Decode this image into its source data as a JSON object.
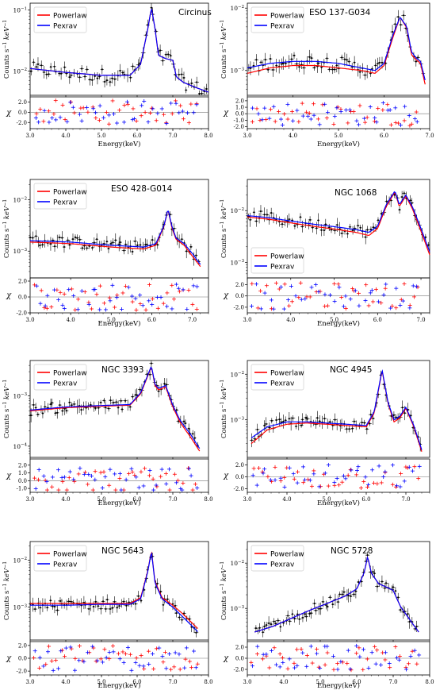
{
  "figure": {
    "legend_entries": [
      {
        "label": "Powerlaw",
        "color": "#ff0000"
      },
      {
        "label": "Pexrav",
        "color": "#0000ff"
      }
    ],
    "residual_label": "χ",
    "spectrum_ylabel": "Counts s^-1 keV^-1"
  },
  "chart_data": [
    {
      "type": "line",
      "title": "Circinus",
      "xlabel": "Energy(keV)",
      "xlim": [
        3.0,
        8.0
      ],
      "xticks": [
        "3.0",
        "4.0",
        "5.0",
        "6.0",
        "7.0",
        "8.0"
      ],
      "yscale": "log",
      "ylim": [
        0.004,
        0.13
      ],
      "yticks": [
        "10^-2",
        "10^-1"
      ],
      "series": [
        {
          "name": "Powerlaw",
          "x": [
            3.0,
            4.0,
            5.0,
            5.8,
            6.1,
            6.3,
            6.4,
            6.5,
            6.6,
            6.8,
            7.0,
            7.1,
            7.3,
            7.6,
            8.0
          ],
          "y": [
            0.011,
            0.0095,
            0.0085,
            0.0085,
            0.013,
            0.05,
            0.11,
            0.05,
            0.018,
            0.016,
            0.015,
            0.008,
            0.0065,
            0.0055,
            0.0045
          ]
        },
        {
          "name": "Pexrav",
          "x": [
            3.0,
            4.0,
            5.0,
            5.8,
            6.1,
            6.3,
            6.4,
            6.5,
            6.6,
            6.8,
            7.0,
            7.1,
            7.3,
            7.6,
            8.0
          ],
          "y": [
            0.011,
            0.0095,
            0.0085,
            0.0085,
            0.013,
            0.05,
            0.11,
            0.05,
            0.018,
            0.016,
            0.015,
            0.008,
            0.0065,
            0.0055,
            0.0045
          ]
        }
      ],
      "residual": {
        "ylim": [
          -3.2,
          3.0
        ],
        "yticks": [
          "2.0",
          "0.0",
          "-2.0"
        ],
        "ytick_values": [
          2.0,
          0.0,
          -2.0
        ]
      }
    },
    {
      "type": "line",
      "title": "ESO 137-G034",
      "xlabel": "Energy(keV)",
      "xlim": [
        3.0,
        7.0
      ],
      "xticks": [
        "3.0",
        "4.0",
        "5.0",
        "6.0",
        "7.0"
      ],
      "yscale": "log",
      "ylim": [
        0.0004,
        0.012
      ],
      "yticks": [
        "10^-3",
        "10^-2"
      ],
      "series": [
        {
          "name": "Powerlaw",
          "x": [
            3.0,
            3.5,
            4.0,
            4.5,
            5.0,
            5.5,
            5.8,
            6.0,
            6.2,
            6.35,
            6.5,
            6.6,
            6.7,
            6.8,
            6.9
          ],
          "y": [
            0.0009,
            0.0011,
            0.0012,
            0.0012,
            0.0011,
            0.001,
            0.0009,
            0.0012,
            0.0035,
            0.0072,
            0.0048,
            0.0018,
            0.0015,
            0.0013,
            0.0006
          ]
        },
        {
          "name": "Pexrav",
          "x": [
            3.0,
            3.5,
            4.0,
            4.5,
            5.0,
            5.5,
            5.8,
            6.0,
            6.2,
            6.35,
            6.5,
            6.6,
            6.7,
            6.8,
            6.9
          ],
          "y": [
            0.0011,
            0.0013,
            0.0014,
            0.0014,
            0.0013,
            0.0011,
            0.001,
            0.0013,
            0.0038,
            0.0072,
            0.005,
            0.002,
            0.0016,
            0.0014,
            0.0007
          ]
        }
      ],
      "residual": {
        "ylim": [
          -2.3,
          2.6
        ],
        "yticks": [
          "2.0",
          "1.0",
          "0.0",
          "-1.0",
          "-2.0"
        ],
        "ytick_values": [
          2.0,
          1.0,
          0.0,
          -1.0,
          -2.0
        ]
      }
    },
    {
      "type": "line",
      "title": "ESO 428-G014",
      "xlabel": "Energy(keV)",
      "xlim": [
        3.0,
        7.4
      ],
      "xticks": [
        "3.0",
        "4.0",
        "5.0",
        "6.0",
        "7.0"
      ],
      "yscale": "log",
      "ylim": [
        0.0003,
        0.025
      ],
      "yticks": [
        "10^-3",
        "10^-2"
      ],
      "series": [
        {
          "name": "Powerlaw",
          "x": [
            3.0,
            4.0,
            5.0,
            5.8,
            6.1,
            6.3,
            6.4,
            6.5,
            6.6,
            6.8,
            7.0,
            7.2
          ],
          "y": [
            0.0015,
            0.0014,
            0.0012,
            0.0011,
            0.0013,
            0.003,
            0.0065,
            0.0028,
            0.0017,
            0.0013,
            0.0008,
            0.0005
          ]
        },
        {
          "name": "Pexrav",
          "x": [
            3.0,
            4.0,
            5.0,
            5.8,
            6.1,
            6.3,
            6.4,
            6.5,
            6.6,
            6.8,
            7.0,
            7.2
          ],
          "y": [
            0.0016,
            0.0015,
            0.0013,
            0.0012,
            0.0014,
            0.0031,
            0.0066,
            0.003,
            0.0018,
            0.0014,
            0.0009,
            0.00055
          ]
        }
      ],
      "residual": {
        "ylim": [
          -2.0,
          2.4
        ],
        "yticks": [
          "2.0",
          "0.0",
          "-2.0"
        ],
        "ytick_values": [
          2.0,
          0.0,
          -2.0
        ]
      }
    },
    {
      "type": "line",
      "title": "NGC 1068",
      "xlabel": "Energy(keV)",
      "xlim": [
        3.0,
        7.2
      ],
      "xticks": [
        "3.0",
        "4.0",
        "5.0",
        "6.0",
        "7.0"
      ],
      "yscale": "log",
      "ylim": [
        0.0005,
        0.04
      ],
      "yticks": [
        "10^-3",
        "10^-2"
      ],
      "series": [
        {
          "name": "Powerlaw",
          "x": [
            3.0,
            3.5,
            4.0,
            4.5,
            5.0,
            5.5,
            5.8,
            6.0,
            6.2,
            6.4,
            6.5,
            6.65,
            6.8,
            7.0,
            7.2
          ],
          "y": [
            0.0075,
            0.0068,
            0.0058,
            0.005,
            0.0044,
            0.0038,
            0.0033,
            0.0045,
            0.012,
            0.023,
            0.012,
            0.019,
            0.011,
            0.004,
            0.0014
          ]
        },
        {
          "name": "Pexrav",
          "x": [
            3.0,
            3.5,
            4.0,
            4.5,
            5.0,
            5.5,
            5.8,
            6.0,
            6.2,
            6.4,
            6.5,
            6.65,
            6.8,
            7.0,
            7.2
          ],
          "y": [
            0.008,
            0.0073,
            0.0063,
            0.0055,
            0.0049,
            0.0043,
            0.0038,
            0.005,
            0.013,
            0.024,
            0.013,
            0.02,
            0.012,
            0.0045,
            0.0016
          ]
        }
      ],
      "residual": {
        "ylim": [
          -3.0,
          3.2
        ],
        "yticks": [
          "2.0",
          "0.0",
          "-2.0"
        ],
        "ytick_values": [
          2.0,
          0.0,
          -2.0
        ]
      }
    },
    {
      "type": "line",
      "title": "NGC 3393",
      "xlabel": "Energy(keV)",
      "xlim": [
        3.0,
        8.0
      ],
      "xticks": [
        "3.0",
        "4.0",
        "5.0",
        "6.0",
        "7.0",
        "8.0"
      ],
      "yscale": "log",
      "ylim": [
        6e-05,
        0.005
      ],
      "yticks": [
        "10^-4",
        "10^-3"
      ],
      "series": [
        {
          "name": "Powerlaw",
          "x": [
            3.0,
            4.0,
            5.0,
            5.8,
            6.1,
            6.3,
            6.4,
            6.5,
            6.6,
            6.8,
            7.0,
            7.2,
            7.5,
            7.75
          ],
          "y": [
            0.0005,
            0.00058,
            0.00062,
            0.00065,
            0.0011,
            0.0025,
            0.0038,
            0.0016,
            0.0013,
            0.0015,
            0.0006,
            0.0003,
            0.00015,
            8e-05
          ]
        },
        {
          "name": "Pexrav",
          "x": [
            3.0,
            4.0,
            5.0,
            5.8,
            6.1,
            6.3,
            6.4,
            6.5,
            6.6,
            6.8,
            7.0,
            7.2,
            7.5,
            7.75
          ],
          "y": [
            0.00052,
            0.0006,
            0.00064,
            0.00067,
            0.00115,
            0.0026,
            0.0039,
            0.0017,
            0.0014,
            0.0016,
            0.00065,
            0.00033,
            0.00017,
            9e-05
          ]
        }
      ],
      "residual": {
        "ylim": [
          -1.5,
          2.8
        ],
        "yticks": [
          "2.0",
          "1.0",
          "0.0",
          "-1.0"
        ],
        "ytick_values": [
          2.0,
          1.0,
          0.0,
          -1.0
        ]
      }
    },
    {
      "type": "line",
      "title": "NGC 4945",
      "xlabel": "Energy(keV)",
      "xlim": [
        3.0,
        7.6
      ],
      "xticks": [
        "3.0",
        "4.0",
        "5.0",
        "6.0",
        "7.0"
      ],
      "yscale": "log",
      "ylim": [
        0.00015,
        0.02
      ],
      "yticks": [
        "10^-3",
        "10^-2"
      ],
      "series": [
        {
          "name": "Powerlaw",
          "x": [
            3.1,
            3.5,
            4.0,
            4.5,
            5.0,
            5.5,
            6.0,
            6.2,
            6.4,
            6.55,
            6.7,
            6.85,
            7.0,
            7.2,
            7.4
          ],
          "y": [
            0.0003,
            0.0006,
            0.0008,
            0.00085,
            0.0008,
            0.00075,
            0.0007,
            0.0014,
            0.012,
            0.0023,
            0.0009,
            0.0011,
            0.0018,
            0.0007,
            0.0002
          ]
        },
        {
          "name": "Pexrav",
          "x": [
            3.1,
            3.5,
            4.0,
            4.5,
            5.0,
            5.5,
            6.0,
            6.2,
            6.4,
            6.55,
            6.7,
            6.85,
            7.0,
            7.2,
            7.4
          ],
          "y": [
            0.0004,
            0.0007,
            0.0009,
            0.0009,
            0.00085,
            0.0008,
            0.00075,
            0.0015,
            0.0125,
            0.0024,
            0.001,
            0.0012,
            0.0019,
            0.00075,
            0.00022
          ]
        }
      ],
      "residual": {
        "ylim": [
          -2.6,
          3.0
        ],
        "yticks": [
          "2.0",
          "0.0",
          "-2.0"
        ],
        "ytick_values": [
          2.0,
          0.0,
          -2.0
        ]
      }
    },
    {
      "type": "line",
      "title": "NGC 5643",
      "xlabel": "Energy(keV)",
      "xlim": [
        3.0,
        8.0
      ],
      "xticks": [
        "3.0",
        "4.0",
        "5.0",
        "6.0",
        "7.0",
        "8.0"
      ],
      "yscale": "log",
      "ylim": [
        0.0002,
        0.025
      ],
      "yticks": [
        "10^-3",
        "10^-2"
      ],
      "series": [
        {
          "name": "Powerlaw",
          "x": [
            3.0,
            4.0,
            5.0,
            5.8,
            6.1,
            6.3,
            6.4,
            6.5,
            6.7,
            7.0,
            7.3,
            7.7
          ],
          "y": [
            0.0012,
            0.0012,
            0.0012,
            0.0012,
            0.0016,
            0.006,
            0.016,
            0.0035,
            0.0016,
            0.0011,
            0.0007,
            0.00035
          ]
        },
        {
          "name": "Pexrav",
          "x": [
            3.0,
            4.0,
            5.0,
            5.8,
            6.1,
            6.3,
            6.4,
            6.5,
            6.7,
            7.0,
            7.3,
            7.7
          ],
          "y": [
            0.0011,
            0.0011,
            0.00115,
            0.00115,
            0.0015,
            0.0058,
            0.0155,
            0.0033,
            0.0015,
            0.001,
            0.0006,
            0.0003
          ]
        }
      ],
      "residual": {
        "ylim": [
          -2.6,
          2.6
        ],
        "yticks": [
          "2.0",
          "0.0",
          "-2.0"
        ],
        "ytick_values": [
          2.0,
          0.0,
          -2.0
        ]
      }
    },
    {
      "type": "line",
      "title": "NGC 5728",
      "xlabel": "Energy(keV)",
      "xlim": [
        3.0,
        8.0
      ],
      "xticks": [
        "3.0",
        "4.0",
        "5.0",
        "6.0",
        "7.0",
        "8.0"
      ],
      "yscale": "log",
      "ylim": [
        0.0002,
        0.03
      ],
      "yticks": [
        "10^-3",
        "10^-2"
      ],
      "series": [
        {
          "name": "Powerlaw",
          "x": [
            3.2,
            3.7,
            4.2,
            4.7,
            5.2,
            5.7,
            6.0,
            6.2,
            6.3,
            6.4,
            6.6,
            6.8,
            7.0,
            7.2,
            7.5,
            7.7
          ],
          "y": [
            0.0003,
            0.0004,
            0.0006,
            0.0009,
            0.0013,
            0.0019,
            0.0027,
            0.006,
            0.014,
            0.006,
            0.0035,
            0.003,
            0.0025,
            0.0011,
            0.0005,
            0.0003
          ]
        },
        {
          "name": "Pexrav",
          "x": [
            3.2,
            3.7,
            4.2,
            4.7,
            5.2,
            5.7,
            6.0,
            6.2,
            6.3,
            6.4,
            6.6,
            6.8,
            7.0,
            7.2,
            7.5,
            7.7
          ],
          "y": [
            0.0003,
            0.0004,
            0.0006,
            0.0009,
            0.0013,
            0.0019,
            0.0027,
            0.006,
            0.014,
            0.006,
            0.0035,
            0.003,
            0.0025,
            0.0011,
            0.0005,
            0.0003
          ]
        }
      ],
      "residual": {
        "ylim": [
          -3.0,
          3.0
        ],
        "yticks": [
          "2.0",
          "0.0",
          "-2.0"
        ],
        "ytick_values": [
          2.0,
          0.0,
          -2.0
        ]
      }
    }
  ]
}
